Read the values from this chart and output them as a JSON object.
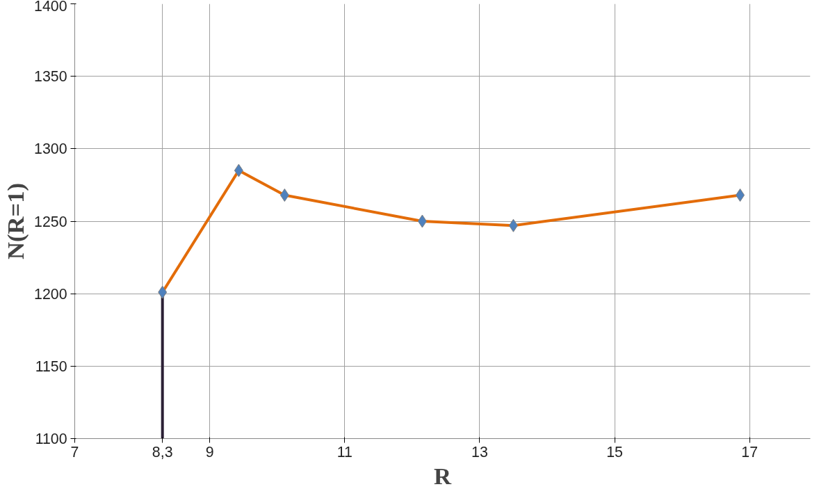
{
  "chart_data": {
    "type": "line",
    "xlabel": "R",
    "ylabel": "N(R=1)",
    "xlim": [
      7,
      17.9
    ],
    "ylim": [
      1100,
      1400
    ],
    "xticks": [
      7,
      {
        "value": 8.3,
        "label": "8,3"
      },
      9,
      11,
      13,
      15,
      17
    ],
    "yticks": [
      1100,
      1150,
      1200,
      1250,
      1300,
      1350,
      1400
    ],
    "grid": true,
    "line_style": "solid",
    "series": [
      {
        "color": "#2b2035",
        "marker": "none",
        "x": [
          8.3,
          8.3
        ],
        "values": [
          1100,
          1201
        ]
      },
      {
        "color": "#e36c09",
        "marker": "none",
        "x": [
          8.3,
          9.43,
          10.11,
          12.15,
          13.5,
          16.86
        ],
        "values": [
          1201,
          1285,
          1268,
          1250,
          1247,
          1268
        ]
      },
      {
        "type": "scatter",
        "color": "#4f81bd",
        "marker": "diamond",
        "x": [
          8.3,
          9.43,
          10.11,
          12.15,
          13.5,
          16.86
        ],
        "values": [
          1201,
          1285,
          1268,
          1250,
          1247,
          1268
        ]
      }
    ]
  }
}
